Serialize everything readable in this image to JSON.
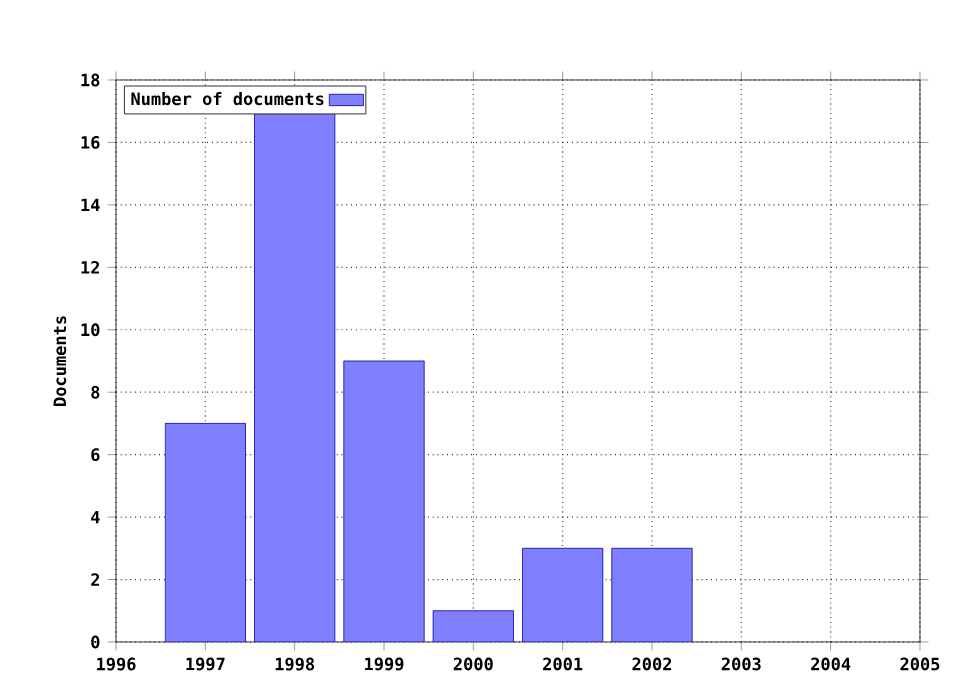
{
  "chart_data": {
    "type": "bar",
    "ylabel": "Documents",
    "x": [
      1997,
      1998,
      1999,
      2000,
      2001,
      2002
    ],
    "series": [
      {
        "name": "Number of documents",
        "color": "#8080ff",
        "values": [
          7,
          17,
          9,
          1,
          3,
          3
        ]
      }
    ],
    "xlim": [
      1996,
      2005
    ],
    "xticks": [
      1996,
      1997,
      1998,
      1999,
      2000,
      2001,
      2002,
      2003,
      2004,
      2005
    ],
    "ylim": [
      0,
      18
    ],
    "yticks": [
      0,
      2,
      4,
      6,
      8,
      10,
      12,
      14,
      16,
      18
    ],
    "grid": true,
    "legend": "top left"
  }
}
